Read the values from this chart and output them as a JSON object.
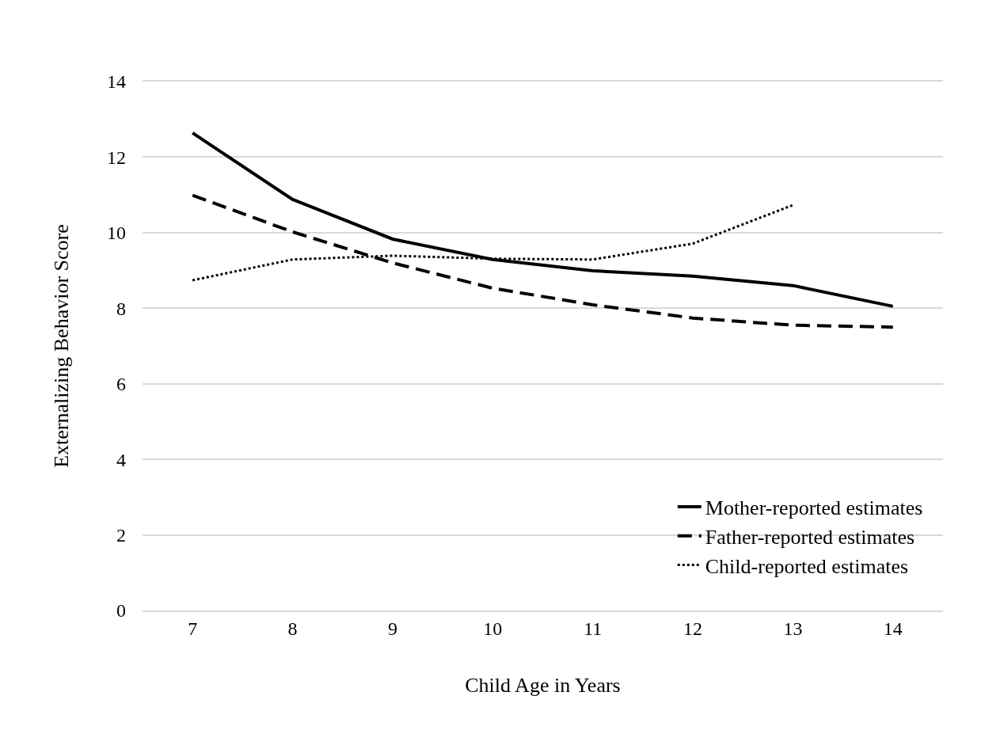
{
  "chart_data": {
    "type": "line",
    "xlabel": "Child Age in Years",
    "ylabel": "Externalizing Behavior Score",
    "categories": [
      "7",
      "8",
      "9",
      "10",
      "11",
      "12",
      "13",
      "14"
    ],
    "series": [
      {
        "name": "Mother-reported estimates",
        "color": "#000000",
        "line_style": "solid",
        "values": [
          12.64,
          10.88,
          9.83,
          9.29,
          8.99,
          8.85,
          8.6,
          8.05
        ]
      },
      {
        "name": "Father-reported estimates",
        "color": "#000000",
        "line_style": "dashed",
        "values": [
          10.99,
          10.02,
          9.2,
          8.53,
          8.09,
          7.74,
          7.55,
          7.5
        ]
      },
      {
        "name": "Child-reported estimates",
        "color": "#000000",
        "line_style": "dotted",
        "values": [
          8.74,
          9.29,
          9.39,
          9.31,
          9.29,
          9.71,
          10.73,
          null
        ]
      }
    ],
    "ylim": [
      0,
      14
    ],
    "yticks": [
      0,
      2,
      4,
      6,
      8,
      10,
      12,
      14
    ],
    "grid": "y",
    "legend": "bottom right",
    "marker": "none"
  }
}
